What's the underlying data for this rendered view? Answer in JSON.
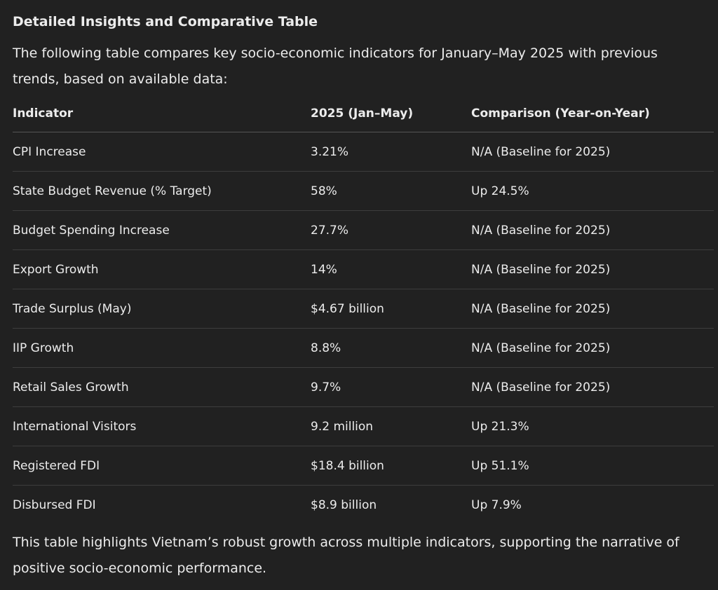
{
  "heading": "Detailed Insights and Comparative Table",
  "intro": "The following table compares key socio-economic indicators for January–May 2025 with previous trends, based on available data:",
  "table": {
    "header": [
      "Indicator",
      "2025 (Jan–May)",
      "Comparison (Year-on-Year)"
    ],
    "rows": [
      [
        "CPI Increase",
        "3.21%",
        "N/A (Baseline for 2025)"
      ],
      [
        "State Budget Revenue (% Target)",
        "58%",
        "Up 24.5%"
      ],
      [
        "Budget Spending Increase",
        "27.7%",
        "N/A (Baseline for 2025)"
      ],
      [
        "Export Growth",
        "14%",
        "N/A (Baseline for 2025)"
      ],
      [
        "Trade Surplus (May)",
        "$4.67 billion",
        "N/A (Baseline for 2025)"
      ],
      [
        "IIP Growth",
        "8.8%",
        "N/A (Baseline for 2025)"
      ],
      [
        "Retail Sales Growth",
        "9.7%",
        "N/A (Baseline for 2025)"
      ],
      [
        "International Visitors",
        "9.2 million",
        "Up 21.3%"
      ],
      [
        "Registered FDI",
        "$18.4 billion",
        "Up 51.1%"
      ],
      [
        "Disbursed FDI",
        "$8.9 billion",
        "Up 7.9%"
      ]
    ]
  },
  "conclusion": "This table highlights Vietnam’s robust growth across multiple indicators, supporting the narrative of positive socio-economic performance."
}
